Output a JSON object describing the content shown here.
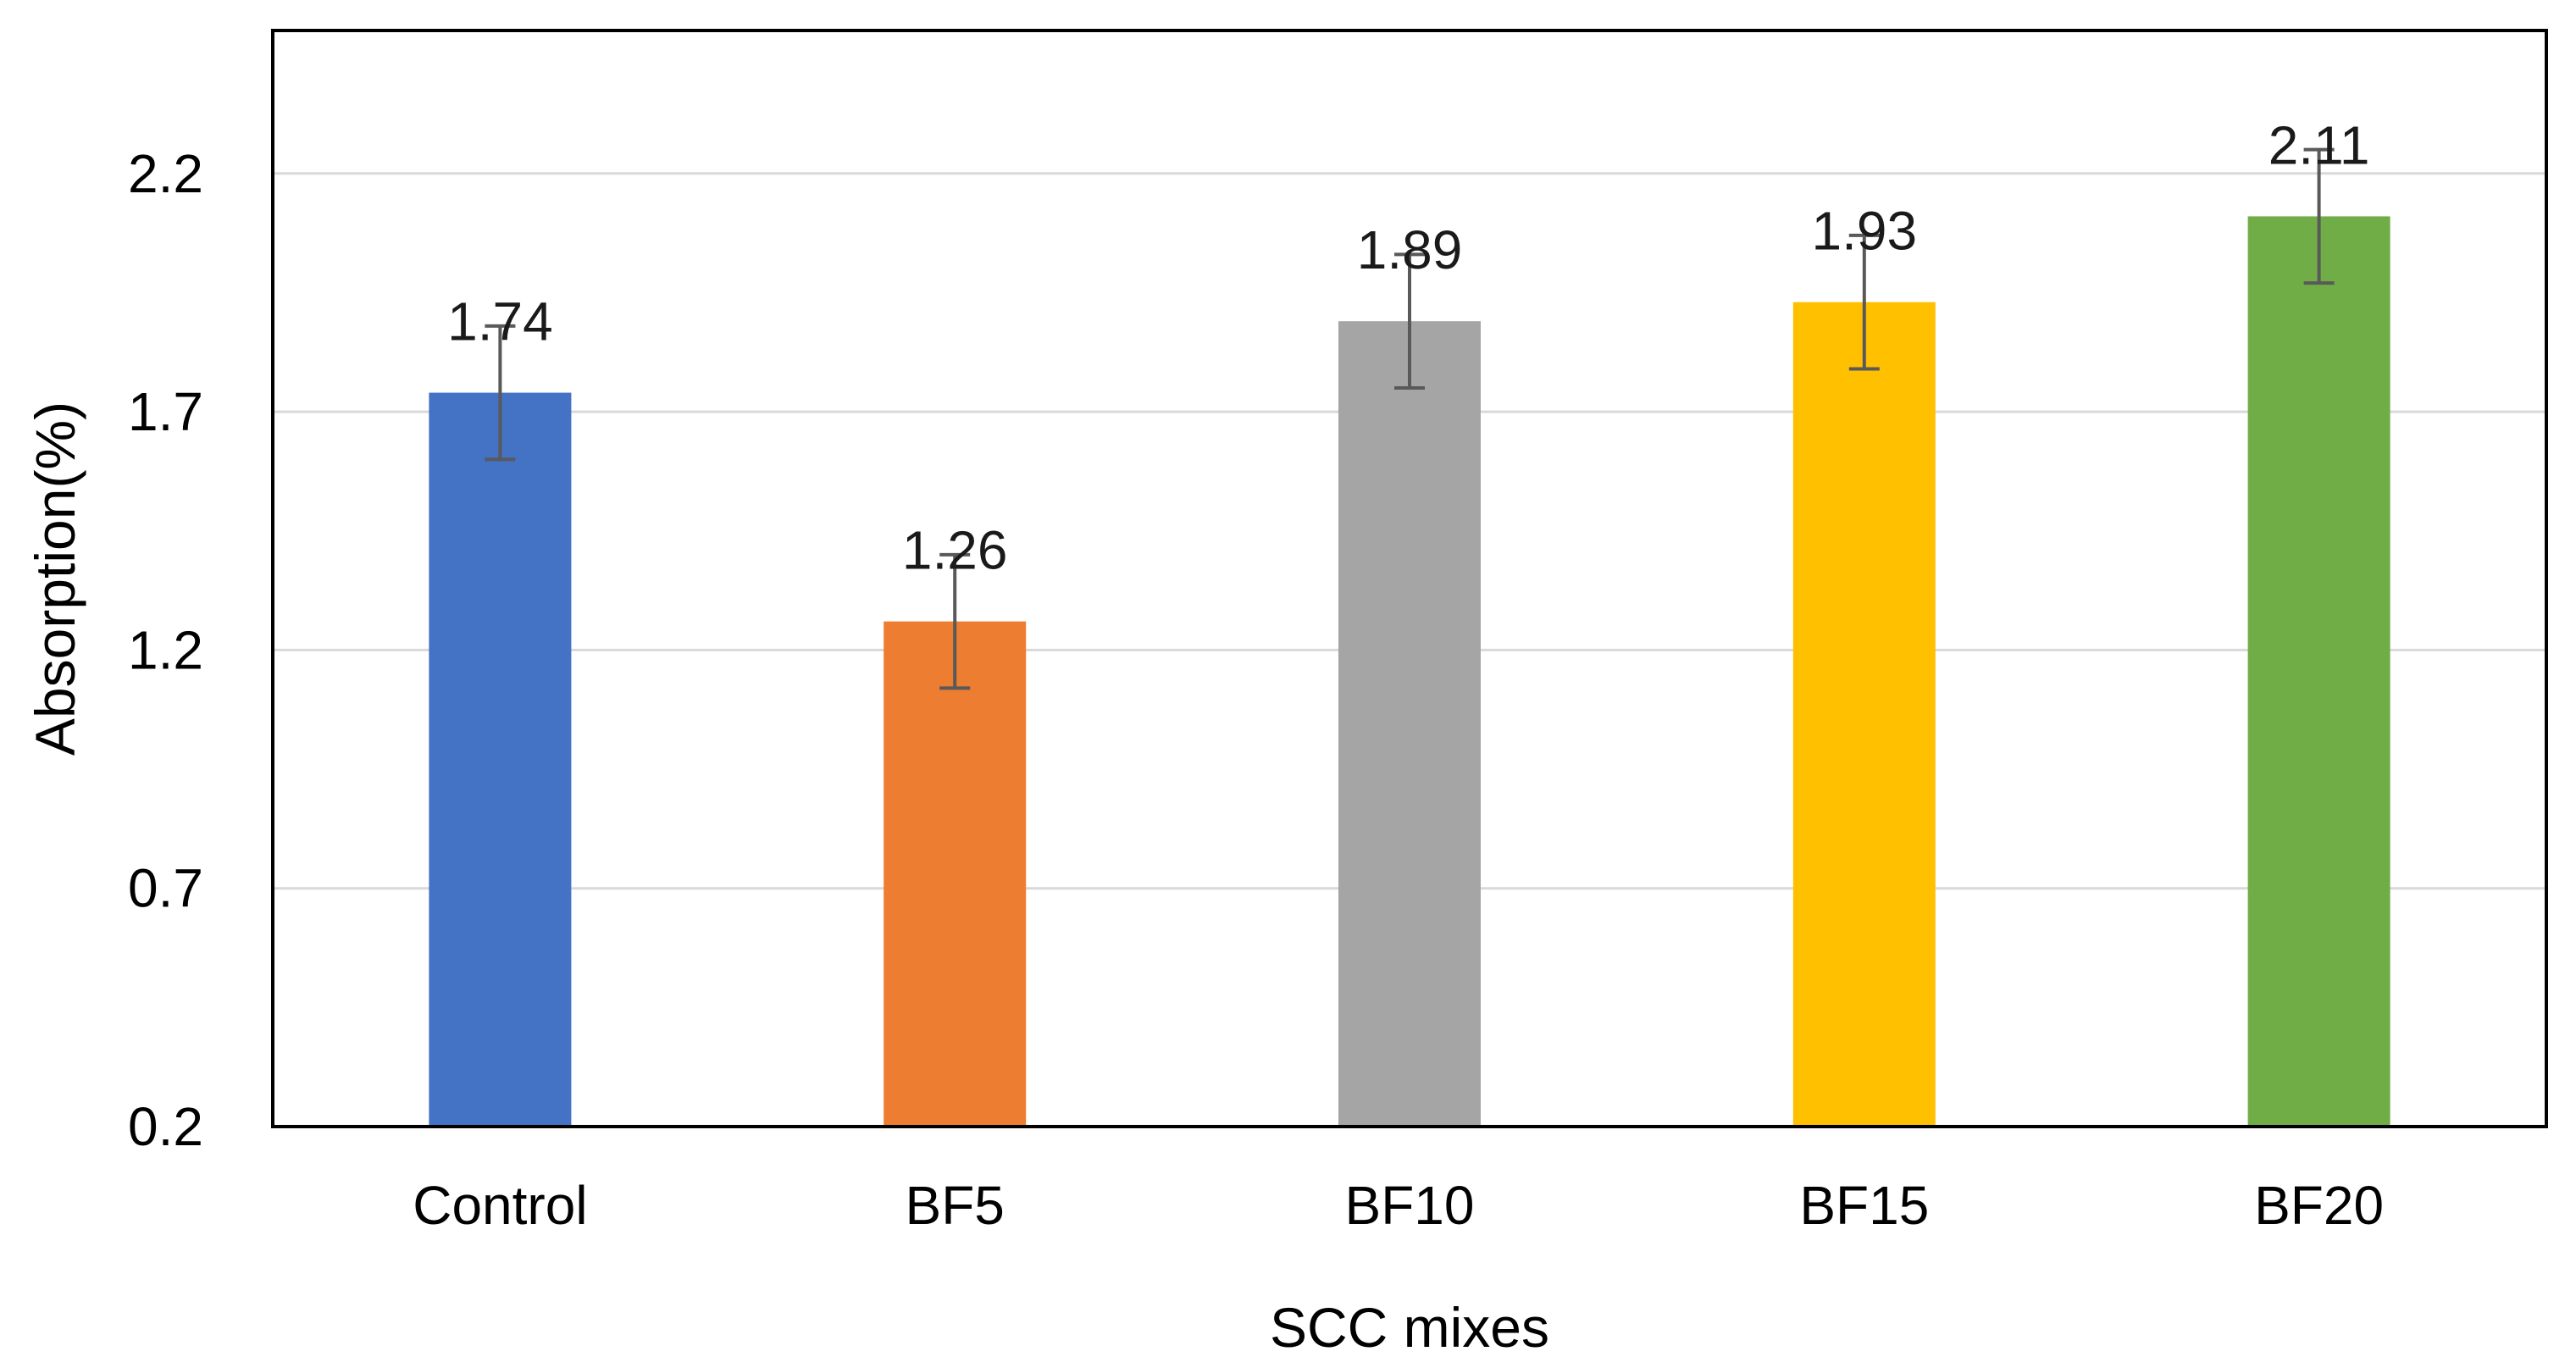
{
  "chart_data": {
    "type": "bar",
    "title": "",
    "xlabel": "SCC mixes",
    "ylabel": "Absorption(%)",
    "categories": [
      "Control",
      "BF5",
      "BF10",
      "BF15",
      "BF20"
    ],
    "values": [
      1.74,
      1.26,
      1.89,
      1.93,
      2.11
    ],
    "data_labels": [
      "1.74",
      "1.26",
      "1.89",
      "1.93",
      "2.11"
    ],
    "error_bars": [
      0.14,
      0.14,
      0.14,
      0.14,
      0.14
    ],
    "colors": [
      "#4472C4",
      "#ED7D31",
      "#A5A5A5",
      "#FFC000",
      "#70AD47"
    ],
    "ylim": [
      0.2,
      2.5
    ],
    "yticks": [
      0.2,
      0.7,
      1.2,
      1.7,
      2.2
    ],
    "ytick_labels": [
      "0.2",
      "0.7",
      "1.2",
      "1.7",
      "2.2"
    ],
    "grid": true,
    "legend": "none"
  }
}
